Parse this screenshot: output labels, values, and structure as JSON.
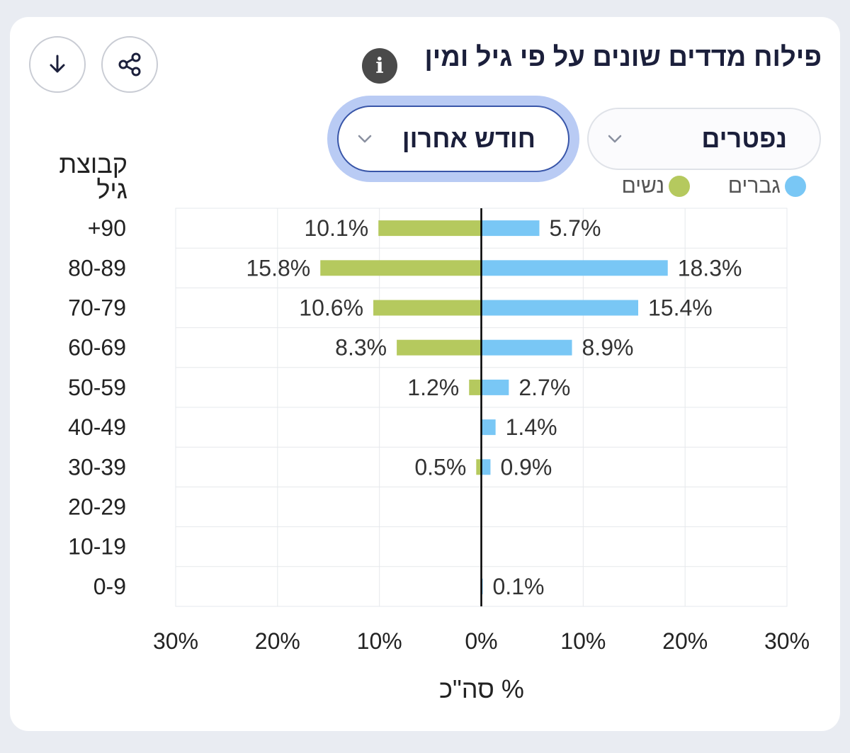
{
  "header": {
    "title": "פילוח מדדים שונים על פי גיל ומין",
    "info_glyph": "i"
  },
  "toolbar": {
    "download_icon": "download-icon",
    "share_icon": "share-icon"
  },
  "filters": {
    "metric_value": "נפטרים",
    "period_value": "חודש אחרון"
  },
  "colors": {
    "men": "#79c7f5",
    "women": "#b5c95e",
    "grid": "#e6e8ec",
    "zero_line": "#000000"
  },
  "chart_data": {
    "type": "bar",
    "orientation": "horizontal-diverging",
    "title": "פילוח מדדים שונים על פי גיל ומין",
    "ylabel": "קבוצת גיל",
    "xlabel": "% סה\"כ",
    "xlim": [
      -30,
      30
    ],
    "x_ticks": [
      "30%",
      "20%",
      "10%",
      "0%",
      "10%",
      "20%",
      "30%"
    ],
    "x_tick_values": [
      -30,
      -20,
      -10,
      0,
      10,
      20,
      30
    ],
    "legend_position": "top-right",
    "categories": [
      "+90",
      "80-89",
      "70-79",
      "60-69",
      "50-59",
      "40-49",
      "30-39",
      "20-29",
      "10-19",
      "0-9"
    ],
    "series": [
      {
        "name": "גברים",
        "side": "right",
        "values": [
          5.7,
          18.3,
          15.4,
          8.9,
          2.7,
          1.4,
          0.9,
          null,
          null,
          0.1
        ],
        "labels": [
          "5.7%",
          "18.3%",
          "15.4%",
          "8.9%",
          "2.7%",
          "1.4%",
          "0.9%",
          null,
          null,
          "0.1%"
        ]
      },
      {
        "name": "נשים",
        "side": "left",
        "values": [
          10.1,
          15.8,
          10.6,
          8.3,
          1.2,
          null,
          0.5,
          null,
          null,
          null
        ],
        "labels": [
          "10.1%",
          "15.8%",
          "10.6%",
          "8.3%",
          "1.2%",
          null,
          "0.5%",
          null,
          null,
          null
        ]
      }
    ]
  }
}
